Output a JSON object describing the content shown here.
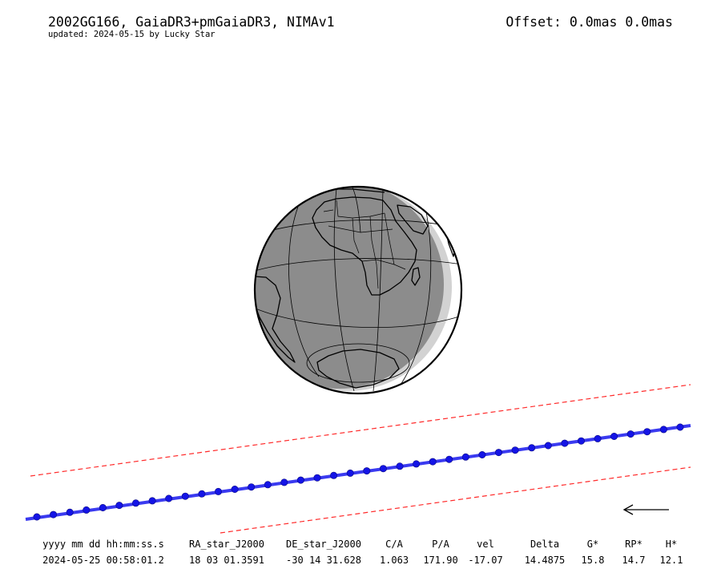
{
  "header": {
    "title": "2002GG166, GaiaDR3+pmGaiaDR3, NIMAv1",
    "subtitle": "updated: 2024-05-15 by Lucky Star",
    "offset": "Offset: 0.0mas 0.0mas"
  },
  "colors": {
    "path": "#3a3af0",
    "points": "#1414e6",
    "limits": "#ff2a2a",
    "night": "#8c8c8c",
    "twilight": "#d2d2d2",
    "day": "#ffffff"
  },
  "direction_arrow": {
    "icon": "left-arrow-icon"
  },
  "table": {
    "headers": [
      "yyyy mm dd hh:mm:ss.s",
      "RA_star_J2000",
      "DE_star_J2000",
      "C/A",
      "P/A",
      "vel",
      "Delta",
      "G*",
      "RP*",
      "H*"
    ],
    "values": [
      "2024-05-25 00:58:01.2",
      "18 03 01.3591",
      "-30 14 31.628",
      "1.063",
      "171.90",
      "-17.07",
      "14.4875",
      "15.8",
      "14.7",
      "12.1"
    ]
  }
}
